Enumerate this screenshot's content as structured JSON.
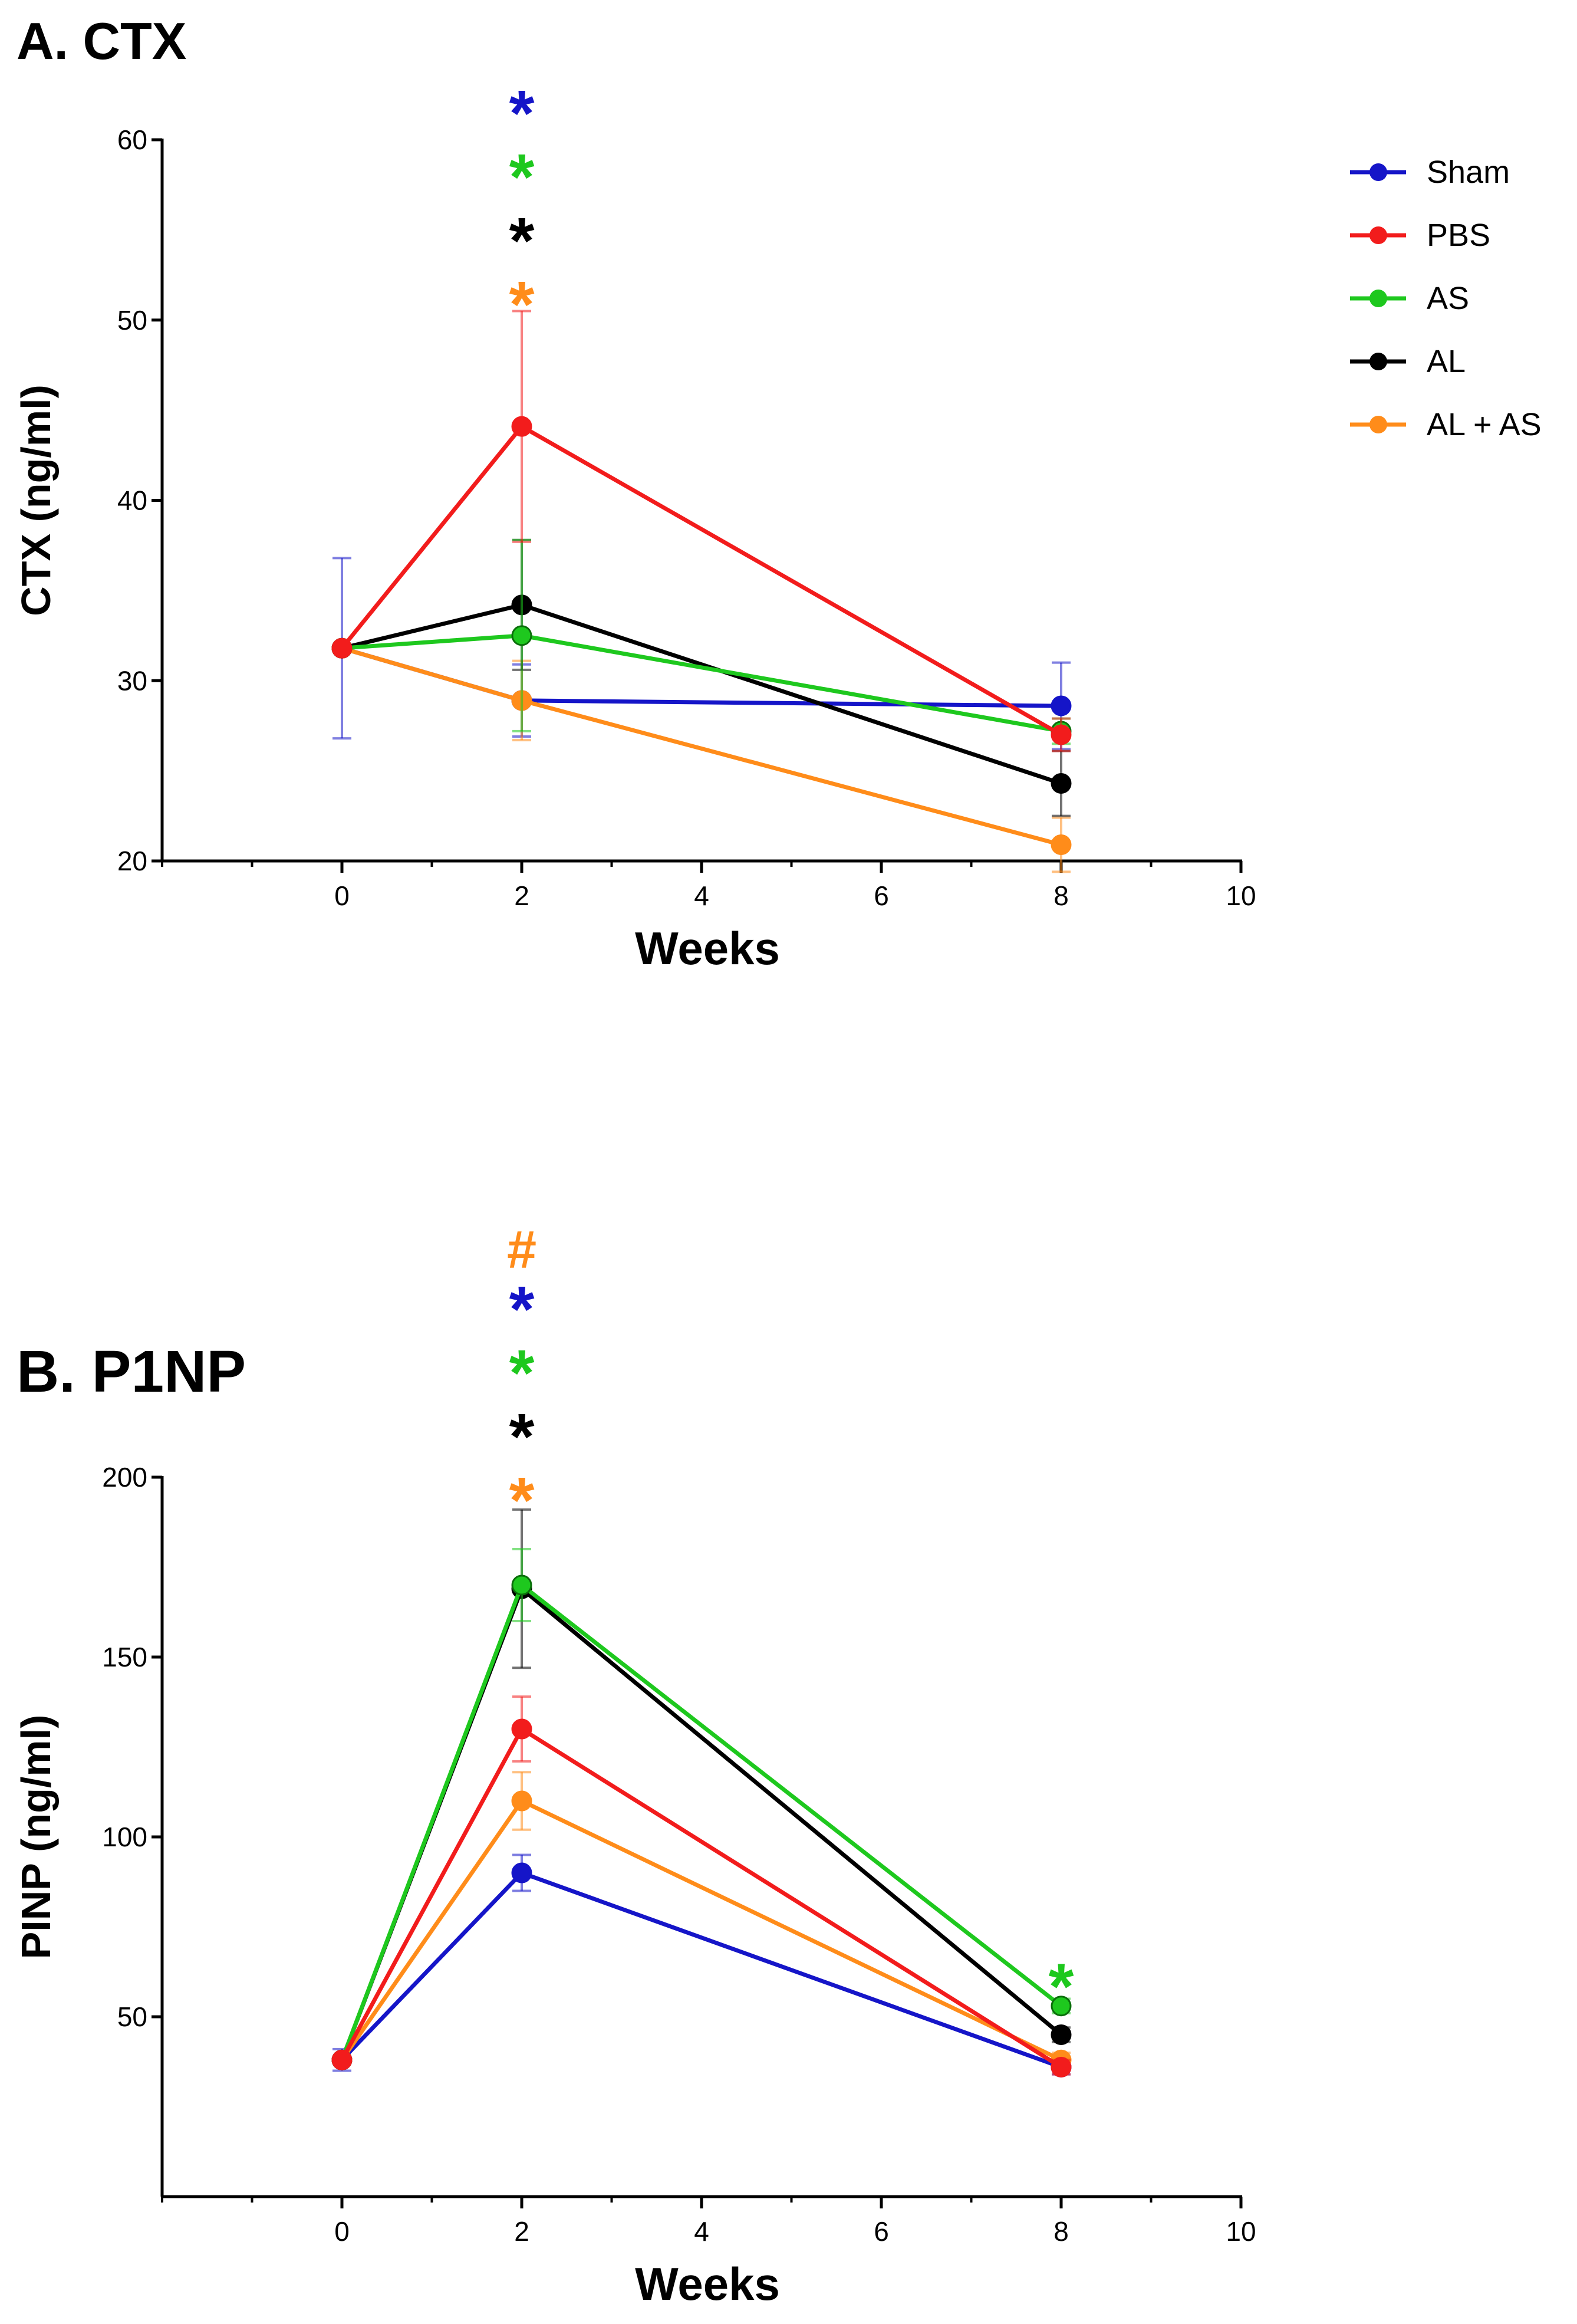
{
  "legend": [
    {
      "name": "Sham",
      "color": "#1515c8"
    },
    {
      "name": "PBS",
      "color": "#f21c1c"
    },
    {
      "name": "AS",
      "color": "#1ec81e"
    },
    {
      "name": "AL",
      "color": "#000000"
    },
    {
      "name": "AL + AS",
      "color": "#ff8c1a"
    }
  ],
  "chart_data": [
    {
      "type": "line",
      "title": "A. CTX",
      "xlabel": "Weeks",
      "ylabel": "CTX (ng/ml)",
      "xlim": [
        -2,
        10
      ],
      "ylim": [
        20,
        60
      ],
      "xticks": [
        0,
        2,
        4,
        6,
        8,
        10
      ],
      "yticks": [
        20,
        30,
        40,
        50,
        60
      ],
      "x": [
        0,
        2,
        8
      ],
      "series": [
        {
          "name": "Sham",
          "color": "#1515c8",
          "values": [
            31.8,
            28.9,
            28.6
          ],
          "err": [
            5.0,
            2.0,
            2.4
          ]
        },
        {
          "name": "PBS",
          "color": "#f21c1c",
          "values": [
            31.8,
            44.1,
            27.0
          ],
          "err": [
            0,
            6.4,
            0.9
          ]
        },
        {
          "name": "AS",
          "color": "#1ec81e",
          "values": [
            31.8,
            32.5,
            27.2
          ],
          "err": [
            0,
            5.3,
            0.7
          ]
        },
        {
          "name": "AL",
          "color": "#000000",
          "values": [
            31.8,
            34.2,
            24.3
          ],
          "err": [
            0,
            3.6,
            1.8
          ]
        },
        {
          "name": "AL + AS",
          "color": "#ff8c1a",
          "values": [
            31.8,
            28.9,
            20.9
          ],
          "err": [
            0,
            2.2,
            1.5
          ]
        }
      ],
      "annotations": [
        {
          "text": "*",
          "x": 2,
          "color": "#1515c8"
        },
        {
          "text": "*",
          "x": 2,
          "color": "#1ec81e"
        },
        {
          "text": "*",
          "x": 2,
          "color": "#000000"
        },
        {
          "text": "*",
          "x": 2,
          "color": "#ff8c1a"
        }
      ]
    },
    {
      "type": "line",
      "title": "B.  P1NP",
      "xlabel": "Weeks",
      "ylabel": "PINP (ng/ml)",
      "xlim": [
        -2,
        10
      ],
      "ylim": [
        0,
        200
      ],
      "xticks": [
        0,
        2,
        4,
        6,
        8,
        10
      ],
      "yticks": [
        50,
        100,
        150,
        200
      ],
      "x": [
        0,
        2,
        8
      ],
      "series": [
        {
          "name": "Sham",
          "color": "#1515c8",
          "values": [
            38,
            90,
            36
          ],
          "err": [
            3,
            5,
            2
          ]
        },
        {
          "name": "PBS",
          "color": "#f21c1c",
          "values": [
            38,
            130,
            36
          ],
          "err": [
            0,
            9,
            2
          ]
        },
        {
          "name": "AS",
          "color": "#1ec81e",
          "values": [
            38,
            170,
            53
          ],
          "err": [
            0,
            10,
            2
          ]
        },
        {
          "name": "AL",
          "color": "#000000",
          "values": [
            38,
            169,
            45
          ],
          "err": [
            0,
            22,
            2
          ]
        },
        {
          "name": "AL + AS",
          "color": "#ff8c1a",
          "values": [
            38,
            110,
            38
          ],
          "err": [
            0,
            8,
            2
          ]
        }
      ],
      "annotations": [
        {
          "text": "#",
          "x": 2,
          "color": "#ff8c1a"
        },
        {
          "text": "*",
          "x": 2,
          "color": "#1515c8"
        },
        {
          "text": "*",
          "x": 2,
          "color": "#1ec81e"
        },
        {
          "text": "*",
          "x": 2,
          "color": "#000000"
        },
        {
          "text": "*",
          "x": 2,
          "color": "#ff8c1a"
        },
        {
          "text": "*",
          "x": 8,
          "color": "#1ec81e"
        }
      ]
    }
  ]
}
